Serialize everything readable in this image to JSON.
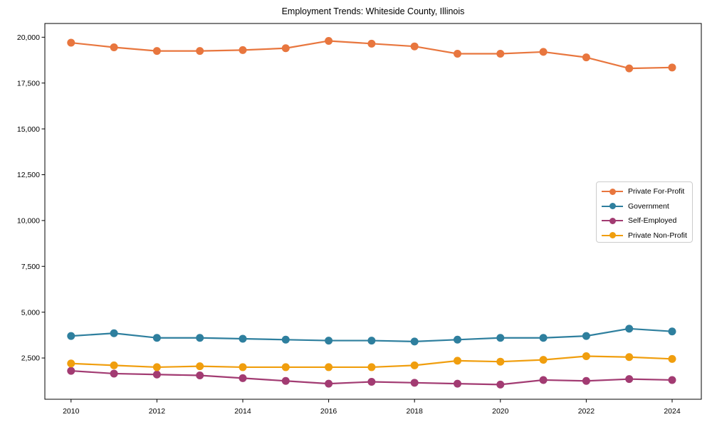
{
  "chart_data": {
    "type": "line",
    "title": "Employment Trends: Whiteside County, Illinois",
    "xlabel": "",
    "ylabel": "",
    "x": [
      2010,
      2011,
      2012,
      2013,
      2014,
      2015,
      2016,
      2017,
      2018,
      2019,
      2020,
      2021,
      2022,
      2023,
      2024
    ],
    "series": [
      {
        "name": "Private For-Profit",
        "color": "#e8763e",
        "values": [
          19700,
          19450,
          19250,
          19250,
          19300,
          19400,
          19800,
          19650,
          19500,
          19100,
          19100,
          19200,
          18900,
          18300,
          18350
        ]
      },
      {
        "name": "Government",
        "color": "#2e7f9e",
        "values": [
          3700,
          3850,
          3600,
          3600,
          3550,
          3500,
          3450,
          3450,
          3400,
          3500,
          3600,
          3600,
          3700,
          4100,
          3950
        ]
      },
      {
        "name": "Self-Employed",
        "color": "#a23b72",
        "values": [
          1800,
          1650,
          1600,
          1550,
          1400,
          1250,
          1100,
          1200,
          1150,
          1100,
          1050,
          1300,
          1250,
          1350,
          1300
        ]
      },
      {
        "name": "Private Non-Profit",
        "color": "#f09e0e",
        "values": [
          2200,
          2100,
          2000,
          2050,
          2000,
          2000,
          2000,
          2000,
          2100,
          2350,
          2300,
          2400,
          2600,
          2550,
          2450
        ]
      }
    ],
    "xticks": [
      2010,
      2012,
      2014,
      2016,
      2018,
      2020,
      2022,
      2024
    ],
    "yticks": [
      2500,
      5000,
      7500,
      10000,
      12500,
      15000,
      17500,
      20000
    ],
    "ytick_labels": [
      "2,500",
      "5,000",
      "7,500",
      "10,000",
      "12,500",
      "15,000",
      "17,500",
      "20,000"
    ],
    "xlim": [
      2009.39,
      2024.68
    ],
    "ylim": [
      250,
      20750
    ],
    "grid": false,
    "legend_position": "center right"
  }
}
